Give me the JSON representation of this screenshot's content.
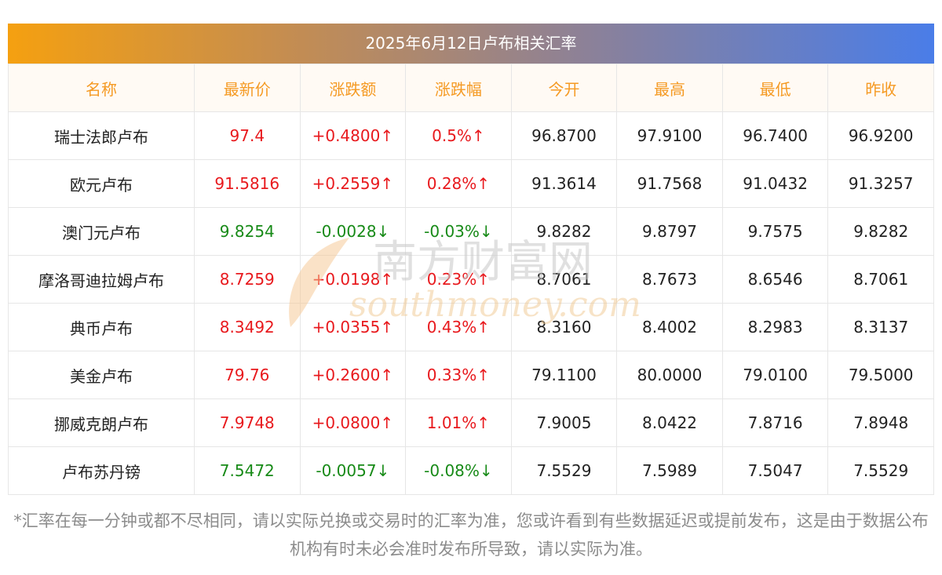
{
  "title": "2025年6月12日卢布相关汇率",
  "headers": [
    "名称",
    "最新价",
    "涨跌额",
    "涨跌幅",
    "今开",
    "最高",
    "最低",
    "昨收"
  ],
  "rows": [
    {
      "name": "瑞士法郎卢布",
      "latest": "97.4",
      "change": "+0.4800↑",
      "pct": "0.5%↑",
      "open": "96.8700",
      "high": "97.9100",
      "low": "96.7400",
      "prev_close": "96.9200",
      "trend": "up"
    },
    {
      "name": "欧元卢布",
      "latest": "91.5816",
      "change": "+0.2559↑",
      "pct": "0.28%↑",
      "open": "91.3614",
      "high": "91.7568",
      "low": "91.0432",
      "prev_close": "91.3257",
      "trend": "up"
    },
    {
      "name": "澳门元卢布",
      "latest": "9.8254",
      "change": "-0.0028↓",
      "pct": "-0.03%↓",
      "open": "9.8282",
      "high": "9.8797",
      "low": "9.7575",
      "prev_close": "9.8282",
      "trend": "down"
    },
    {
      "name": "摩洛哥迪拉姆卢布",
      "latest": "8.7259",
      "change": "+0.0198↑",
      "pct": "0.23%↑",
      "open": "8.7061",
      "high": "8.7673",
      "low": "8.6546",
      "prev_close": "8.7061",
      "trend": "up"
    },
    {
      "name": "典币卢布",
      "latest": "8.3492",
      "change": "+0.0355↑",
      "pct": "0.43%↑",
      "open": "8.3160",
      "high": "8.4002",
      "low": "8.2983",
      "prev_close": "8.3137",
      "trend": "up"
    },
    {
      "name": "美金卢布",
      "latest": "79.76",
      "change": "+0.2600↑",
      "pct": "0.33%↑",
      "open": "79.1100",
      "high": "80.0000",
      "low": "79.0100",
      "prev_close": "79.5000",
      "trend": "up"
    },
    {
      "name": "挪威克朗卢布",
      "latest": "7.9748",
      "change": "+0.0800↑",
      "pct": "1.01%↑",
      "open": "7.9005",
      "high": "8.0422",
      "low": "7.8716",
      "prev_close": "7.8948",
      "trend": "up"
    },
    {
      "name": "卢布苏丹镑",
      "latest": "7.5472",
      "change": "-0.0057↓",
      "pct": "-0.08%↓",
      "open": "7.5529",
      "high": "7.5989",
      "low": "7.5047",
      "prev_close": "7.5529",
      "trend": "down"
    }
  ],
  "colors": {
    "up": "#e8191d",
    "down": "#178a17",
    "header_text": "#f59a23"
  },
  "watermark": {
    "cn": "南方财富网",
    "en": "southmoney.com"
  },
  "footnote": "*汇率在每一分钟或都不尽相同，请以实际兑换或交易时的汇率为准，您或许看到有些数据延迟或提前发布，这是由于数据公布机构有时未必会准时发布所导致，请以实际为准。"
}
